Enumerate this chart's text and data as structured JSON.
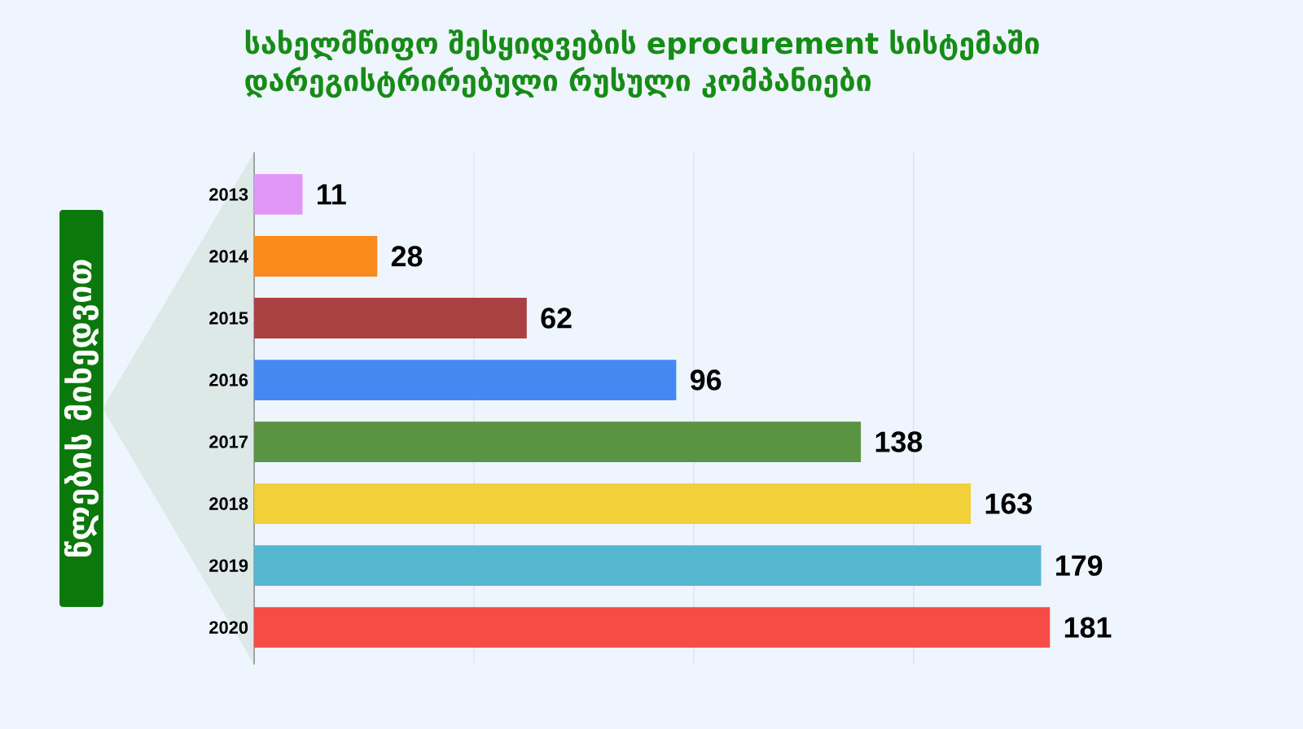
{
  "chart_data": {
    "type": "bar",
    "orientation": "horizontal",
    "title": "სახელმწიფო შესყიდვების eprocurement სისტემაში დარეგისტრირებული რუსული კომპანიები",
    "ylabel": "წლების მიხედვით",
    "categories": [
      "2013",
      "2014",
      "2015",
      "2016",
      "2017",
      "2018",
      "2019",
      "2020"
    ],
    "values": [
      11,
      28,
      62,
      96,
      138,
      163,
      179,
      181
    ],
    "colors": [
      "#e196f7",
      "#fb8a1c",
      "#a94140",
      "#4688f2",
      "#5a9342",
      "#f2d03a",
      "#55b6d0",
      "#f74b45"
    ],
    "xticks": [
      {
        "value": 50,
        "label": null
      },
      {
        "value": 100,
        "label": null
      },
      {
        "value": 150,
        "label": null
      }
    ],
    "grid": "x",
    "data_labels": true,
    "tick_labels": "y"
  }
}
